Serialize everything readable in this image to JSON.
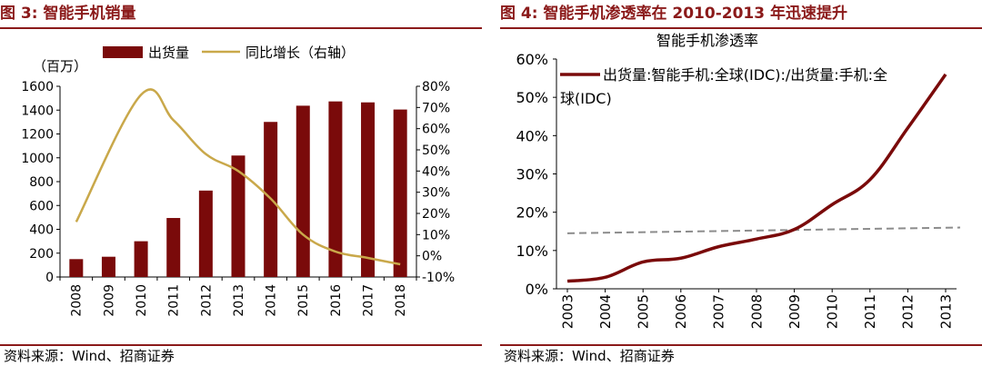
{
  "left": {
    "figure_title": "图 3:  智能手机销量",
    "source": "资料来源：Wind、招商证券"
  },
  "right": {
    "figure_title": "图 4:  智能手机渗透率在 2010-2013 年迅速提升",
    "source": "资料来源：Wind、招商证券"
  },
  "colors": {
    "brand": "#8b1a1a",
    "bar": "#7a0a0a",
    "line_gold": "#c9a84a",
    "trend_dashed": "#8c8c8c"
  },
  "chart_data": [
    {
      "type": "bar",
      "title": "",
      "unit_label": "（百万）",
      "categories": [
        "2008",
        "2009",
        "2010",
        "2011",
        "2012",
        "2013",
        "2014",
        "2015",
        "2016",
        "2017",
        "2018"
      ],
      "series": [
        {
          "name": "出货量",
          "type": "bar",
          "axis": "left",
          "values": [
            150,
            170,
            300,
            495,
            725,
            1019,
            1301,
            1437,
            1473,
            1465,
            1405
          ]
        },
        {
          "name": "同比增长（右轴）",
          "type": "line",
          "axis": "right",
          "values": [
            16,
            null,
            76,
            64,
            48,
            40,
            27,
            10,
            2,
            -1,
            -4
          ]
        }
      ],
      "ylim_left": [
        0,
        1600
      ],
      "yticks_left": [
        0,
        200,
        400,
        600,
        800,
        1000,
        1200,
        1400,
        1600
      ],
      "ylim_right": [
        -10,
        80
      ],
      "yticks_right": [
        -10,
        0,
        10,
        20,
        30,
        40,
        50,
        60,
        70,
        80
      ],
      "yticks_right_labels": [
        "-10%",
        "0%",
        "10%",
        "20%",
        "30%",
        "40%",
        "50%",
        "60%",
        "70%",
        "80%"
      ],
      "legend_position": "top"
    },
    {
      "type": "line",
      "title": "智能手机渗透率",
      "categories": [
        "2003",
        "2004",
        "2005",
        "2006",
        "2007",
        "2008",
        "2009",
        "2010",
        "2011",
        "2012",
        "2013"
      ],
      "series": [
        {
          "name": "出货量:智能手机:全球(IDC):/出货量:手机:全球(IDC)",
          "values": [
            2,
            3,
            7,
            8,
            11,
            13,
            15.5,
            22,
            28.5,
            42,
            56
          ]
        }
      ],
      "trendline": {
        "style": "dashed",
        "start": 14.5,
        "end": 16
      },
      "ylim": [
        0,
        60
      ],
      "yticks": [
        0,
        10,
        20,
        30,
        40,
        50,
        60
      ],
      "ytick_labels": [
        "0%",
        "10%",
        "20%",
        "30%",
        "40%",
        "50%",
        "60%"
      ],
      "legend_position": "top-left"
    }
  ]
}
